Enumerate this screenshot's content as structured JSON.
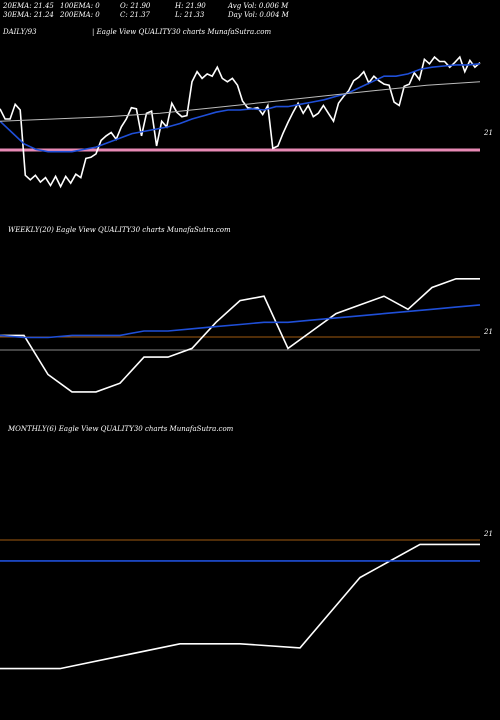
{
  "header": {
    "ema20": "20EMA: 21.45",
    "ema100": "100EMA: 0",
    "open": "O: 21.90",
    "high": "H: 21.90",
    "avgvol": "Avg Vol: 0.006  M",
    "ema30": "30EMA: 21.24",
    "ema200": "200EMA: 0",
    "close": "C: 21.37",
    "low": "L: 21.33",
    "dayvol": "Day Vol: 0.004 M",
    "daily_label": "DAILY/93",
    "daily_title": "| Eagle  View  QUALITY30  charts MunafaSutra.com"
  },
  "weekly": {
    "title": "WEEKLY(20) Eagle  View  QUALITY30  charts MunafaSutra.com",
    "level": "21"
  },
  "monthly": {
    "title": "MONTHLY(6) Eagle  View  QUALITY30  charts MunafaSutra.com",
    "level": "21"
  },
  "daily": {
    "level": "21"
  },
  "colors": {
    "price": "#ffffff",
    "ema": "#1f4fd8",
    "ema_gray": "#bbbbbb",
    "pink": "#e88ab5",
    "orange": "#a05a10"
  },
  "chart_data": [
    {
      "type": "line",
      "name": "daily",
      "ylim": [
        20.6,
        22.1
      ],
      "series": [
        {
          "name": "price",
          "values": [
            21.56,
            21.47,
            21.47,
            21.6,
            21.55,
            20.97,
            20.93,
            20.97,
            20.91,
            20.95,
            20.88,
            20.96,
            20.87,
            20.96,
            20.9,
            20.98,
            20.95,
            21.12,
            21.13,
            21.16,
            21.28,
            21.32,
            21.35,
            21.29,
            21.4,
            21.47,
            21.57,
            21.56,
            21.32,
            21.52,
            21.54,
            21.23,
            21.45,
            21.4,
            21.61,
            21.53,
            21.49,
            21.5,
            21.8,
            21.89,
            21.83,
            21.87,
            21.85,
            21.93,
            21.83,
            21.8,
            21.83,
            21.77,
            21.63,
            21.57,
            21.56,
            21.57,
            21.51,
            21.59,
            21.21,
            21.23,
            21.34,
            21.44,
            21.53,
            21.61,
            21.52,
            21.59,
            21.49,
            21.52,
            21.59,
            21.52,
            21.45,
            21.61,
            21.67,
            21.72,
            21.81,
            21.84,
            21.89,
            21.79,
            21.85,
            21.81,
            21.78,
            21.77,
            21.62,
            21.59,
            21.76,
            21.78,
            21.88,
            21.82,
            22.0,
            21.96,
            22.02,
            21.98,
            21.98,
            21.93,
            21.97,
            22.02,
            21.89,
            21.99,
            21.93,
            21.97
          ]
        },
        {
          "name": "ema",
          "values": [
            21.45,
            21.35,
            21.25,
            21.2,
            21.18,
            21.18,
            21.18,
            21.2,
            21.22,
            21.26,
            21.3,
            21.34,
            21.36,
            21.38,
            21.4,
            21.43,
            21.47,
            21.5,
            21.53,
            21.55,
            21.55,
            21.56,
            21.55,
            21.58,
            21.58,
            21.6,
            21.62,
            21.64,
            21.67,
            21.7,
            21.75,
            21.8,
            21.85,
            21.85,
            21.87,
            21.91,
            21.93,
            21.94,
            21.95,
            21.95,
            21.96
          ]
        },
        {
          "name": "ema_gray",
          "values": [
            21.45,
            21.47,
            21.49,
            21.52,
            21.57,
            21.62,
            21.67,
            21.72,
            21.77,
            21.8
          ]
        }
      ]
    },
    {
      "type": "line",
      "name": "weekly",
      "ylim": [
        19.0,
        23.0
      ],
      "series": [
        {
          "name": "price",
          "values": [
            20.9,
            20.9,
            20.0,
            19.6,
            19.6,
            19.8,
            20.4,
            20.4,
            20.6,
            21.2,
            21.7,
            21.8,
            20.6,
            21.0,
            21.4,
            21.6,
            21.8,
            21.5,
            22.0,
            22.2,
            22.2
          ]
        },
        {
          "name": "ema",
          "values": [
            20.9,
            20.85,
            20.85,
            20.9,
            20.9,
            20.9,
            21.0,
            21.0,
            21.05,
            21.1,
            21.15,
            21.2,
            21.2,
            21.25,
            21.3,
            21.35,
            21.4,
            21.45,
            21.5,
            21.55,
            21.6
          ]
        }
      ]
    },
    {
      "type": "line",
      "name": "monthly",
      "ylim": [
        19.4,
        22.6
      ],
      "series": [
        {
          "name": "price",
          "values": [
            19.9,
            19.9,
            20.05,
            20.2,
            20.2,
            20.15,
            21.0,
            21.4,
            21.4
          ]
        },
        {
          "name": "ema",
          "values": [
            21.2,
            21.2,
            21.2,
            21.2,
            21.2,
            21.2,
            21.2,
            21.2,
            21.2
          ]
        }
      ]
    }
  ]
}
